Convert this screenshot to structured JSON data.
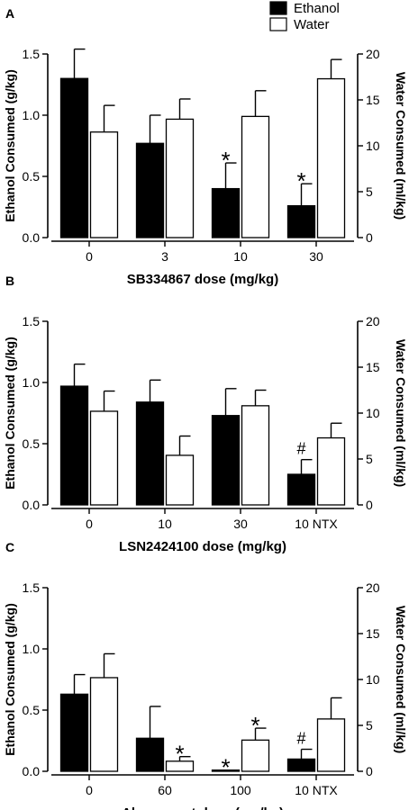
{
  "legend": {
    "items": [
      {
        "label": "Ethanol",
        "fill": "#000000"
      },
      {
        "label": "Water",
        "fill": "#ffffff"
      }
    ],
    "placement": "top-right"
  },
  "colors": {
    "ethanol": "#000000",
    "water": "#ffffff",
    "axis": "#000000"
  },
  "chart_data": [
    {
      "type": "bar",
      "panel_label": "A",
      "categories": [
        "0",
        "3",
        "10",
        "30"
      ],
      "xlabel": "SB334867 dose (mg/kg)",
      "ylabel": "Ethanol Consumed (g/kg)",
      "ylim": [
        0,
        1.5
      ],
      "yticks": [
        "0.0",
        "0.5",
        "1.0",
        "1.5"
      ],
      "y2label": "Water Consumed (ml/kg)",
      "y2lim": [
        0,
        20
      ],
      "y2ticks": [
        "0",
        "5",
        "10",
        "15",
        "20"
      ],
      "series": [
        {
          "name": "Ethanol",
          "axis": "left",
          "values": [
            1.3,
            0.77,
            0.4,
            0.26
          ],
          "errors": [
            0.24,
            0.23,
            0.21,
            0.18
          ],
          "annotations": [
            "",
            "",
            "*",
            "*"
          ]
        },
        {
          "name": "Water",
          "axis": "right",
          "values": [
            11.5,
            12.9,
            13.2,
            17.3
          ],
          "errors": [
            2.9,
            2.2,
            2.8,
            2.1
          ],
          "annotations": [
            "",
            "",
            "",
            ""
          ]
        }
      ]
    },
    {
      "type": "bar",
      "panel_label": "B",
      "categories": [
        "0",
        "10",
        "30",
        "10 NTX"
      ],
      "xlabel": "LSN2424100 dose (mg/kg)",
      "ylabel": "Ethanol Consumed (g/kg)",
      "ylim": [
        0,
        1.5
      ],
      "yticks": [
        "0.0",
        "0.5",
        "1.0",
        "1.5"
      ],
      "y2label": "Water Consumed (ml/kg)",
      "y2lim": [
        0,
        20
      ],
      "y2ticks": [
        "0",
        "5",
        "10",
        "15",
        "20"
      ],
      "series": [
        {
          "name": "Ethanol",
          "axis": "left",
          "values": [
            0.97,
            0.84,
            0.73,
            0.25
          ],
          "errors": [
            0.18,
            0.18,
            0.22,
            0.12
          ],
          "annotations": [
            "",
            "",
            "",
            "#"
          ]
        },
        {
          "name": "Water",
          "axis": "right",
          "values": [
            10.2,
            5.4,
            10.8,
            7.3
          ],
          "errors": [
            2.2,
            2.1,
            1.7,
            1.6
          ],
          "annotations": [
            "",
            "",
            "",
            ""
          ]
        }
      ]
    },
    {
      "type": "bar",
      "panel_label": "C",
      "categories": [
        "0",
        "60",
        "100",
        "10 NTX"
      ],
      "xlabel": "Almorexant dose (mg/kg)",
      "ylabel": "Ethanol Consumed (g/kg)",
      "ylim": [
        0,
        1.5
      ],
      "yticks": [
        "0.0",
        "0.5",
        "1.0",
        "1.5"
      ],
      "y2label": "Water Consumed (ml/kg)",
      "y2lim": [
        0,
        20
      ],
      "y2ticks": [
        "0",
        "5",
        "10",
        "15",
        "20"
      ],
      "series": [
        {
          "name": "Ethanol",
          "axis": "left",
          "values": [
            0.63,
            0.27,
            0.01,
            0.1
          ],
          "errors": [
            0.16,
            0.26,
            0.0,
            0.08
          ],
          "annotations": [
            "",
            "",
            "*",
            "#"
          ]
        },
        {
          "name": "Water",
          "axis": "right",
          "values": [
            10.2,
            1.1,
            3.4,
            5.7
          ],
          "errors": [
            2.6,
            0.5,
            1.3,
            2.3
          ],
          "annotations": [
            "",
            "*",
            "*",
            ""
          ]
        }
      ]
    }
  ]
}
